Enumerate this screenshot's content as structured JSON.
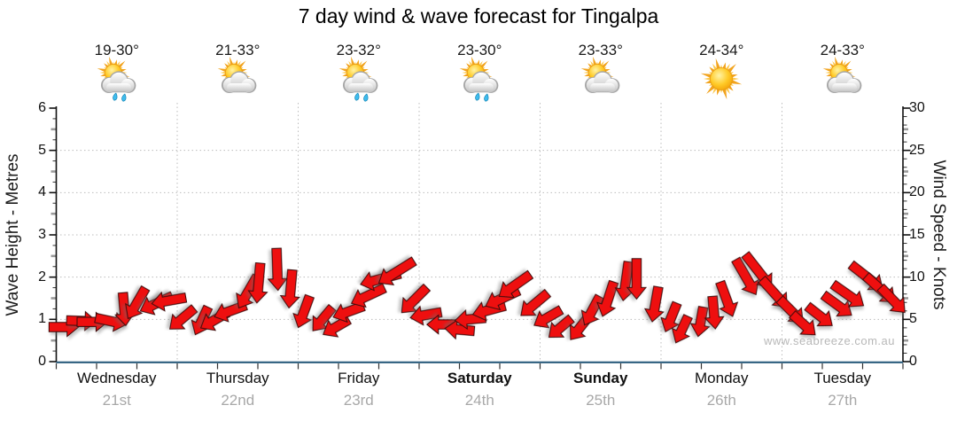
{
  "title": "7 day wind & wave forecast for Tingalpa",
  "watermark": "www.seabreeze.com.au",
  "days": [
    {
      "name": "Wednesday",
      "date": "21st",
      "temp": "19-30°",
      "icon": "sun-cloud-rain",
      "bold": false
    },
    {
      "name": "Thursday",
      "date": "22nd",
      "temp": "21-33°",
      "icon": "sun-cloud",
      "bold": false
    },
    {
      "name": "Friday",
      "date": "23rd",
      "temp": "23-32°",
      "icon": "sun-cloud-rain",
      "bold": false
    },
    {
      "name": "Saturday",
      "date": "24th",
      "temp": "23-30°",
      "icon": "sun-cloud-rain",
      "bold": true
    },
    {
      "name": "Sunday",
      "date": "25th",
      "temp": "23-33°",
      "icon": "sun-cloud",
      "bold": true
    },
    {
      "name": "Monday",
      "date": "26th",
      "temp": "24-34°",
      "icon": "sun",
      "bold": false
    },
    {
      "name": "Tuesday",
      "date": "27th",
      "temp": "24-33°",
      "icon": "sun-cloud",
      "bold": false
    }
  ],
  "left_axis": {
    "title": "Wave Height - Metres",
    "ticks": [
      0,
      1,
      2,
      3,
      4,
      5,
      6
    ],
    "range": [
      0,
      6
    ]
  },
  "right_axis": {
    "title": "Wind Speed - Knots",
    "ticks": [
      0,
      5,
      10,
      15,
      20,
      25,
      30
    ],
    "range": [
      0,
      30
    ]
  },
  "chart_data": {
    "type": "wind-arrow-series",
    "title": "7 day wind & wave forecast for Tingalpa",
    "y_unit": "knots",
    "ylim": [
      0,
      30
    ],
    "secondary_ylim_wave_metres": [
      0,
      6
    ],
    "grid": true,
    "points_per_day": 8,
    "time_step_hours": 3,
    "direction_convention": "degrees clockwise, 0 = arrow pointing right (east), 90 = pointing down (south)",
    "series": [
      {
        "day": "Wednesday",
        "speeds_kn": [
          4.3,
          4.5,
          4.7,
          5.2,
          6.0,
          7.0,
          7.2,
          6.8
        ],
        "dirs_deg": [
          0,
          2,
          0,
          12,
          85,
          120,
          155,
          170
        ]
      },
      {
        "day": "Thursday",
        "speeds_kn": [
          5.5,
          4.6,
          5.0,
          6.3,
          7.8,
          9.5,
          10.6,
          8.6
        ],
        "dirs_deg": [
          140,
          115,
          150,
          160,
          120,
          95,
          88,
          95
        ]
      },
      {
        "day": "Friday",
        "speeds_kn": [
          6.2,
          4.6,
          4.3,
          5.6,
          7.8,
          10.2,
          10.4,
          7.4
        ],
        "dirs_deg": [
          110,
          130,
          150,
          160,
          155,
          165,
          148,
          135
        ]
      },
      {
        "day": "Saturday",
        "speeds_kn": [
          5.2,
          4.4,
          4.2,
          4.8,
          6.2,
          7.8,
          8.6,
          7.0
        ],
        "dirs_deg": [
          170,
          180,
          185,
          175,
          165,
          155,
          145,
          140
        ]
      },
      {
        "day": "Sunday",
        "speeds_kn": [
          5.0,
          4.1,
          4.3,
          5.6,
          7.6,
          9.2,
          9.8,
          7.2
        ],
        "dirs_deg": [
          150,
          140,
          128,
          118,
          108,
          98,
          90,
          100
        ]
      },
      {
        "day": "Monday",
        "speeds_kn": [
          4.8,
          4.0,
          4.4,
          5.8,
          7.8,
          9.8,
          10.8,
          8.4
        ],
        "dirs_deg": [
          112,
          115,
          100,
          85,
          70,
          60,
          52,
          48
        ]
      },
      {
        "day": "Tuesday",
        "speeds_kn": [
          6.0,
          4.8,
          5.2,
          6.8,
          8.2,
          9.6,
          8.8,
          7.0
        ],
        "dirs_deg": [
          45,
          42,
          38,
          36,
          35,
          38,
          42,
          46
        ]
      }
    ]
  },
  "colors": {
    "arrow_fill": "#ee0f0f",
    "arrow_outline": "#3a0a0a",
    "baseline": "#2b5d7d",
    "grid": "#bcbcbc",
    "axis": "#111111",
    "date_text": "#a8a8a8",
    "watermark_text": "#b8b8b8",
    "sun": "#ffc125",
    "cloud": "#d9d9d9",
    "rain_drop": "#3fbcee"
  }
}
